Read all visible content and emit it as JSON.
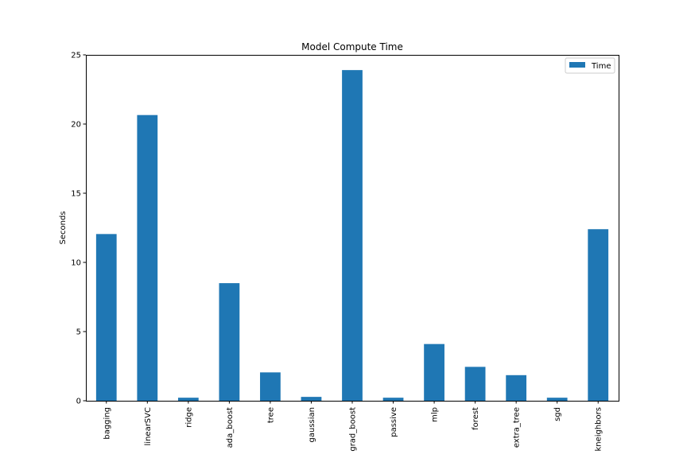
{
  "chart_data": {
    "type": "bar",
    "title": "Model Compute Time",
    "xlabel": "",
    "ylabel": "Seconds",
    "categories": [
      "bagging",
      "linearSVC",
      "ridge",
      "ada_boost",
      "tree",
      "gaussian",
      "grad_boost",
      "passive",
      "mlp",
      "forest",
      "extra_tree",
      "sgd",
      "kneighbors"
    ],
    "series": [
      {
        "name": "Time",
        "color": "#1f77b4",
        "values": [
          12.05,
          20.65,
          0.22,
          8.5,
          2.05,
          0.28,
          23.9,
          0.22,
          4.1,
          2.45,
          1.85,
          0.22,
          12.4
        ]
      }
    ],
    "ylim": [
      0,
      25
    ],
    "yticks": [
      "0",
      "5",
      "10",
      "15",
      "20",
      "25"
    ],
    "grid": false,
    "legend_position": "top-right"
  }
}
